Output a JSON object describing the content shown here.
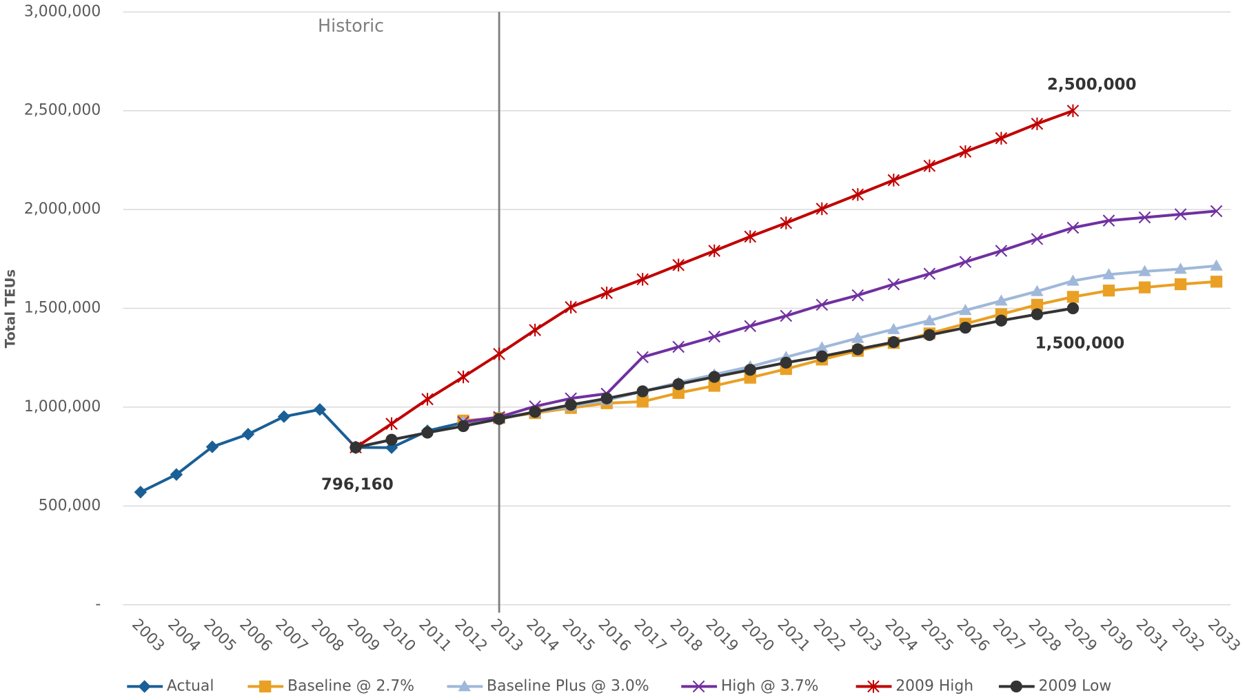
{
  "chart_data": {
    "type": "line",
    "y_label": "Total TEUs",
    "categories": [
      "2003",
      "2004",
      "2005",
      "2006",
      "2007",
      "2008",
      "2009",
      "2010",
      "2011",
      "2012",
      "2013",
      "2014",
      "2015",
      "2016",
      "2017",
      "2018",
      "2019",
      "2020",
      "2021",
      "2022",
      "2023",
      "2024",
      "2025",
      "2026",
      "2027",
      "2028",
      "2029",
      "2030",
      "2031",
      "2032",
      "2033"
    ],
    "ylim": [
      0,
      3000000
    ],
    "yticks": [
      {
        "value": 0,
        "label": "-"
      },
      {
        "value": 500000,
        "label": "500,000"
      },
      {
        "value": 1000000,
        "label": "1,000,000"
      },
      {
        "value": 1500000,
        "label": "1,500,000"
      },
      {
        "value": 2000000,
        "label": "2,000,000"
      },
      {
        "value": 2500000,
        "label": "2,500,000"
      },
      {
        "value": 3000000,
        "label": "3,000,000"
      }
    ],
    "grid": true,
    "legend": "bottom",
    "divider": "2013",
    "annotations": [
      {
        "text": "Historic"
      },
      {
        "text": "796,160"
      },
      {
        "text": "2,500,000"
      },
      {
        "text": "1,500,000"
      }
    ],
    "series": [
      {
        "name": "Actual",
        "color": "#1a5f96",
        "marker": "diamond",
        "values": [
          570000,
          659000,
          799000,
          863000,
          952000,
          988000,
          796160,
          795000,
          880000,
          922000,
          945000,
          null,
          null,
          null,
          null,
          null,
          null,
          null,
          null,
          null,
          null,
          null,
          null,
          null,
          null,
          null,
          null,
          null,
          null,
          null,
          null
        ]
      },
      {
        "name": "Baseline @ 2.7%",
        "color": "#e9a024",
        "marker": "square",
        "values": [
          null,
          null,
          null,
          null,
          null,
          null,
          null,
          null,
          null,
          932000,
          945000,
          970000,
          996000,
          1020000,
          1028000,
          1072000,
          1108000,
          1149000,
          1193000,
          1241000,
          1285000,
          1325000,
          1373000,
          1422000,
          1470000,
          1518000,
          1558000,
          1590000,
          1606000,
          1622000,
          1635000
        ]
      },
      {
        "name": "Baseline Plus @ 3.0%",
        "color": "#9fb8da",
        "marker": "triangle",
        "values": [
          null,
          null,
          null,
          null,
          null,
          null,
          null,
          null,
          null,
          925000,
          945000,
          975000,
          1005000,
          1035000,
          1080000,
          1124000,
          1165000,
          1205000,
          1253000,
          1301000,
          1349000,
          1394000,
          1438000,
          1490000,
          1538000,
          1586000,
          1639000,
          1671000,
          1687000,
          1699000,
          1715000
        ]
      },
      {
        "name": "High @ 3.7%",
        "color": "#7030a0",
        "marker": "x",
        "values": [
          null,
          null,
          null,
          null,
          null,
          null,
          null,
          null,
          null,
          925000,
          950000,
          1004000,
          1044000,
          1068000,
          1253000,
          1305000,
          1357000,
          1410000,
          1462000,
          1518000,
          1566000,
          1622000,
          1675000,
          1735000,
          1791000,
          1851000,
          1908000,
          1944000,
          1960000,
          1976000,
          1992000
        ]
      },
      {
        "name": "2009 High",
        "color": "#c00000",
        "marker": "star",
        "values": [
          null,
          null,
          null,
          null,
          null,
          null,
          796160,
          916000,
          1040000,
          1153000,
          1269000,
          1390000,
          1506000,
          1578000,
          1647000,
          1719000,
          1791000,
          1863000,
          1932000,
          2004000,
          2076000,
          2149000,
          2221000,
          2293000,
          2361000,
          2434000,
          2500000,
          null,
          null,
          null,
          null
        ]
      },
      {
        "name": "2009 Low",
        "color": "#333333",
        "marker": "circle",
        "values": [
          null,
          null,
          null,
          null,
          null,
          null,
          796160,
          835000,
          871000,
          904000,
          940000,
          976000,
          1012000,
          1044000,
          1080000,
          1116000,
          1153000,
          1189000,
          1225000,
          1257000,
          1293000,
          1329000,
          1365000,
          1402000,
          1438000,
          1470000,
          1500000,
          null,
          null,
          null,
          null
        ]
      }
    ]
  }
}
